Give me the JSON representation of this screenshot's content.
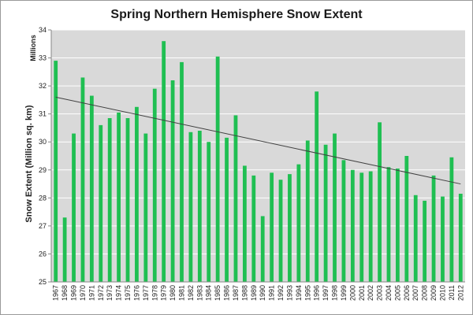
{
  "chart_data": {
    "type": "bar",
    "title": "Spring Northern Hemisphere Snow Extent",
    "ylabel": "Snow Extent (Million sq. km)",
    "units_label": "Millions",
    "xlabel": "",
    "ylim": [
      25,
      34
    ],
    "yticks": [
      25,
      26,
      27,
      28,
      29,
      30,
      31,
      32,
      33,
      34
    ],
    "grid": true,
    "legend": "none",
    "bar_color": "#1fbf52",
    "plot_background": "#d9d9d9",
    "trendline": {
      "from": [
        1967,
        31.6
      ],
      "to": [
        2012,
        28.5
      ],
      "color": "#404040"
    },
    "categories": [
      "1967",
      "1968",
      "1969",
      "1970",
      "1971",
      "1972",
      "1973",
      "1974",
      "1975",
      "1976",
      "1977",
      "1978",
      "1979",
      "1980",
      "1981",
      "1982",
      "1983",
      "1984",
      "1985",
      "1986",
      "1987",
      "1988",
      "1989",
      "1990",
      "1991",
      "1992",
      "1993",
      "1994",
      "1995",
      "1996",
      "1997",
      "1998",
      "1999",
      "2000",
      "2001",
      "2002",
      "2003",
      "2004",
      "2005",
      "2006",
      "2007",
      "2008",
      "2009",
      "2010",
      "2011",
      "2012"
    ],
    "values": [
      32.9,
      27.3,
      30.3,
      32.3,
      31.65,
      30.6,
      30.85,
      31.05,
      30.85,
      31.25,
      30.3,
      31.9,
      33.6,
      32.2,
      32.85,
      30.35,
      30.4,
      30.0,
      33.05,
      30.15,
      30.95,
      29.15,
      28.8,
      27.35,
      28.9,
      28.65,
      28.85,
      29.2,
      30.05,
      31.8,
      29.9,
      30.3,
      29.35,
      29.0,
      28.9,
      28.95,
      30.7,
      29.1,
      29.05,
      29.5,
      28.1,
      27.9,
      28.8,
      28.05,
      29.45,
      28.15
    ]
  }
}
